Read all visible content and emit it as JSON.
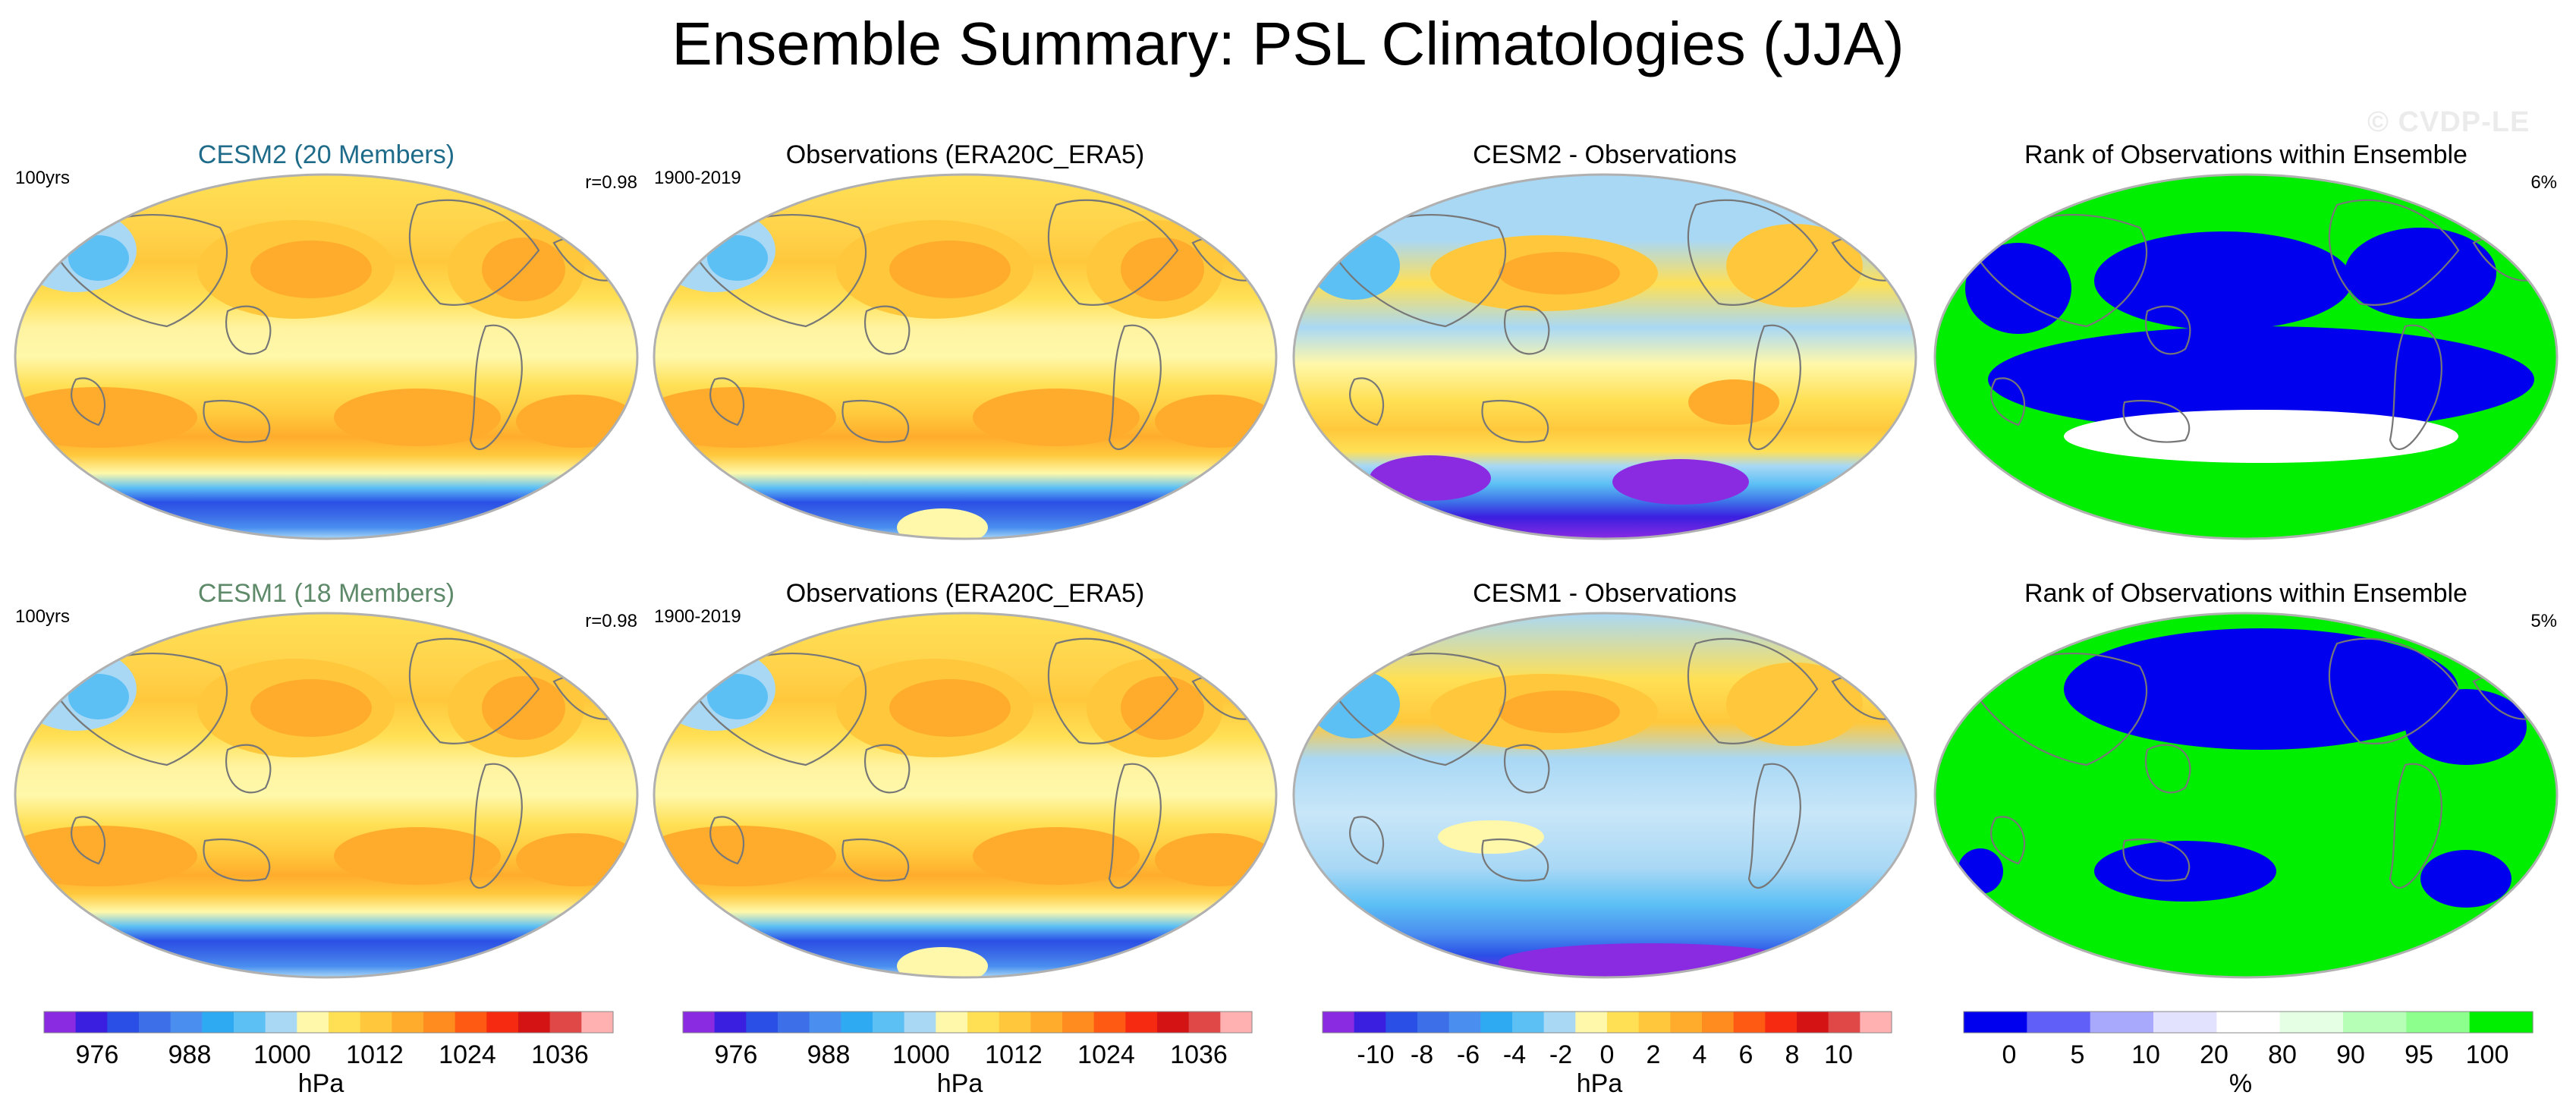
{
  "figure_title": "Ensemble Summary: PSL Climatologies (JJA)",
  "watermark": "© CVDP-LE",
  "colors": {
    "psl_scale": [
      "#8a2be2",
      "#3b1fe0",
      "#2a4fe6",
      "#3d6fe8",
      "#4a8ff0",
      "#2eaaf2",
      "#5cc0f5",
      "#a9d8f5",
      "#fff8aa",
      "#ffe055",
      "#ffc83c",
      "#ffac2c",
      "#ff8c1e",
      "#ff5a14",
      "#f52a10",
      "#d41414",
      "#e04848",
      "#ffb0b0"
    ],
    "rank_scale": [
      "#0000ee",
      "#6060f8",
      "#a8a8fc",
      "#e2e2ff",
      "#ffffff",
      "#e4ffe4",
      "#b6ffb6",
      "#8cff8c",
      "#00ee00"
    ],
    "cesm2_title": "#1f6b8a",
    "cesm1_title": "#5e8a6a",
    "coastline": "#777777"
  },
  "chart_data": [
    {
      "type": "heatmap",
      "id": "cesm2-model",
      "title": "CESM2 (20 Members)",
      "left_label": "100yrs",
      "right_label": "r=0.98",
      "fill": "model_psl"
    },
    {
      "type": "heatmap",
      "id": "cesm2-obs",
      "title": "Observations (ERA20C_ERA5)",
      "left_label": "1900-2019",
      "right_label": "",
      "fill": "obs_psl"
    },
    {
      "type": "heatmap",
      "id": "cesm2-diff",
      "title": "CESM2 - Observations",
      "left_label": "",
      "right_label": "",
      "fill": "diff_cesm2"
    },
    {
      "type": "heatmap",
      "id": "cesm2-rank",
      "title": "Rank of Observations within Ensemble",
      "left_label": "",
      "right_label": "6%",
      "fill": "rank_cesm2"
    },
    {
      "type": "heatmap",
      "id": "cesm1-model",
      "title": "CESM1 (18 Members)",
      "left_label": "100yrs",
      "right_label": "r=0.98",
      "fill": "model_psl"
    },
    {
      "type": "heatmap",
      "id": "cesm1-obs",
      "title": "Observations (ERA20C_ERA5)",
      "left_label": "1900-2019",
      "right_label": "",
      "fill": "obs_psl"
    },
    {
      "type": "heatmap",
      "id": "cesm1-diff",
      "title": "CESM1 - Observations",
      "left_label": "",
      "right_label": "",
      "fill": "diff_cesm1"
    },
    {
      "type": "heatmap",
      "id": "cesm1-rank",
      "title": "Rank of Observations within Ensemble",
      "left_label": "",
      "right_label": "5%",
      "fill": "rank_cesm1"
    }
  ],
  "colorbars": [
    {
      "id": "cb1",
      "units": "hPa",
      "ticks": [
        "976",
        "988",
        "1000",
        "1012",
        "1024",
        "1036"
      ],
      "scale": "psl"
    },
    {
      "id": "cb2",
      "units": "hPa",
      "ticks": [
        "976",
        "988",
        "1000",
        "1012",
        "1024",
        "1036"
      ],
      "scale": "psl"
    },
    {
      "id": "cb3",
      "units": "hPa",
      "ticks": [
        "-10",
        "-8",
        "-6",
        "-4",
        "-2",
        "0",
        "2",
        "4",
        "6",
        "8",
        "10"
      ],
      "scale": "psl"
    },
    {
      "id": "cb4",
      "units": "%",
      "ticks": [
        "0",
        "5",
        "10",
        "20",
        "80",
        "90",
        "95",
        "100"
      ],
      "scale": "rank"
    }
  ]
}
